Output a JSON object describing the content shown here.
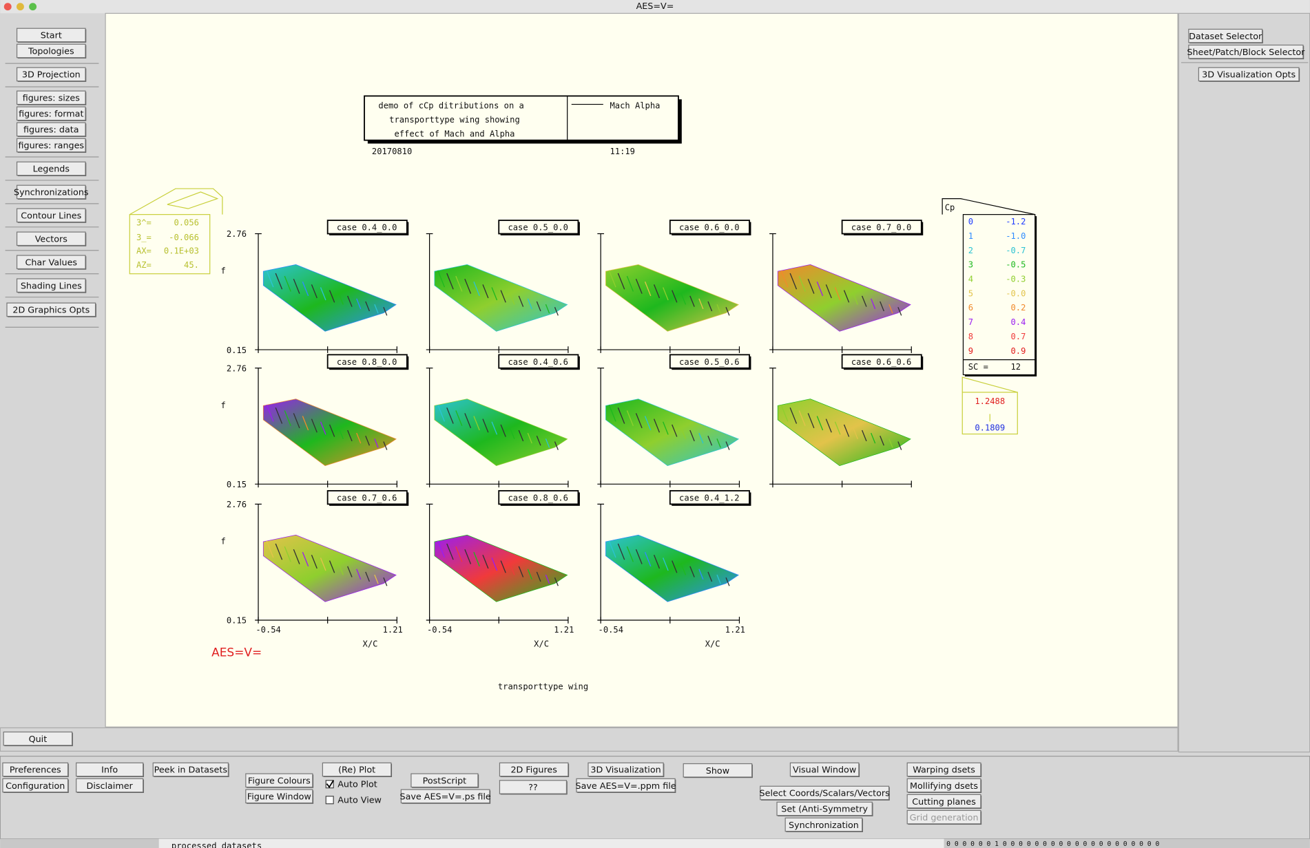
{
  "window": {
    "title": "AES=V="
  },
  "left_buttons": [
    "Start",
    "Topologies",
    "3D Projection",
    "figures: sizes",
    "figures: format",
    "figures: data",
    "figures: ranges",
    "Legends",
    "Synchronizations",
    "Contour Lines",
    "Vectors",
    "Char Values",
    "Shading Lines",
    "2D Graphics Opts"
  ],
  "quit": "Quit",
  "right_buttons": [
    "Dataset Selector",
    "Sheet/Patch/Block Selector",
    "3D Visualization Opts"
  ],
  "header": {
    "description": [
      "demo of cCp ditributions on a",
      "transporttype wing showing",
      "effect of Mach and Alpha"
    ],
    "legend_label": "Mach Alpha",
    "date": "20170810",
    "time": "11:19"
  },
  "view_box": [
    {
      "label": "3^=",
      "value": "0.056"
    },
    {
      "label": "3_=",
      "value": "-0.066"
    },
    {
      "label": "AX=",
      "value": "0.1E+03"
    },
    {
      "label": "AZ=",
      "value": "45."
    }
  ],
  "axes": {
    "ylabel": "f",
    "xlabel": "X/C",
    "ymax": "2.76",
    "ymin": "0.15",
    "xmin": "-0.54",
    "xmax": "1.21"
  },
  "panels": [
    "case 0.4_0.0",
    "case 0.5_0.0",
    "case 0.6_0.0",
    "case 0.7_0.0",
    "case 0.8_0.0",
    "case 0.4_0.6",
    "case 0.5_0.6",
    "case 0.6_0.6",
    "case 0.7_0.6",
    "case 0.8_0.6",
    "case 0.4_1.2"
  ],
  "cp_legend": {
    "title": "Cp",
    "levels": [
      {
        "index": "0",
        "value": "-1.2",
        "color": "#1f3cff"
      },
      {
        "index": "1",
        "value": "-1.0",
        "color": "#2f8cff"
      },
      {
        "index": "2",
        "value": "-0.7",
        "color": "#2cc3d2"
      },
      {
        "index": "3",
        "value": "-0.5",
        "color": "#1eb81e"
      },
      {
        "index": "4",
        "value": "-0.3",
        "color": "#8fcf2e"
      },
      {
        "index": "5",
        "value": "-0.0",
        "color": "#e2c34a"
      },
      {
        "index": "6",
        "value": "0.2",
        "color": "#f08a2c"
      },
      {
        "index": "7",
        "value": "0.4",
        "color": "#9a1ef0"
      },
      {
        "index": "8",
        "value": "0.7",
        "color": "#f03a3a"
      },
      {
        "index": "9",
        "value": "0.9",
        "color": "#e21c1c"
      }
    ],
    "sc_label": "SC =",
    "sc_value": "12"
  },
  "range": {
    "max": "1.2488",
    "min": "0.1809"
  },
  "logo": "AES=V=",
  "caption": "transporttype wing",
  "bottom_buttons": [
    "Preferences",
    "Configuration",
    "Info",
    "Disclaimer",
    "Peek in Datasets",
    "Figure Colours",
    "Figure Window",
    "(Re) Plot",
    "PostScript",
    "Save AES=V=.ps file",
    "2D Figures",
    "??",
    "3D Visualization",
    "Save AES=V=.ppm file",
    "Show",
    "Visual Window",
    "Select Coords/Scalars/Vectors",
    "Set    (Anti-Symmetry",
    "Synchronization",
    "Warping    dsets",
    "Mollifying dsets",
    "Cutting planes",
    "Grid generation"
  ],
  "checkboxes": [
    {
      "label": "Auto Plot",
      "checked": true
    },
    {
      "label": "Auto View",
      "checked": false
    }
  ],
  "status": "processed datasets",
  "strip": "0 0 0 0 0 0 1 0 0 0 0 0 0 0 0 0 0 0 0 0 0 0 0 0 0 0 0"
}
